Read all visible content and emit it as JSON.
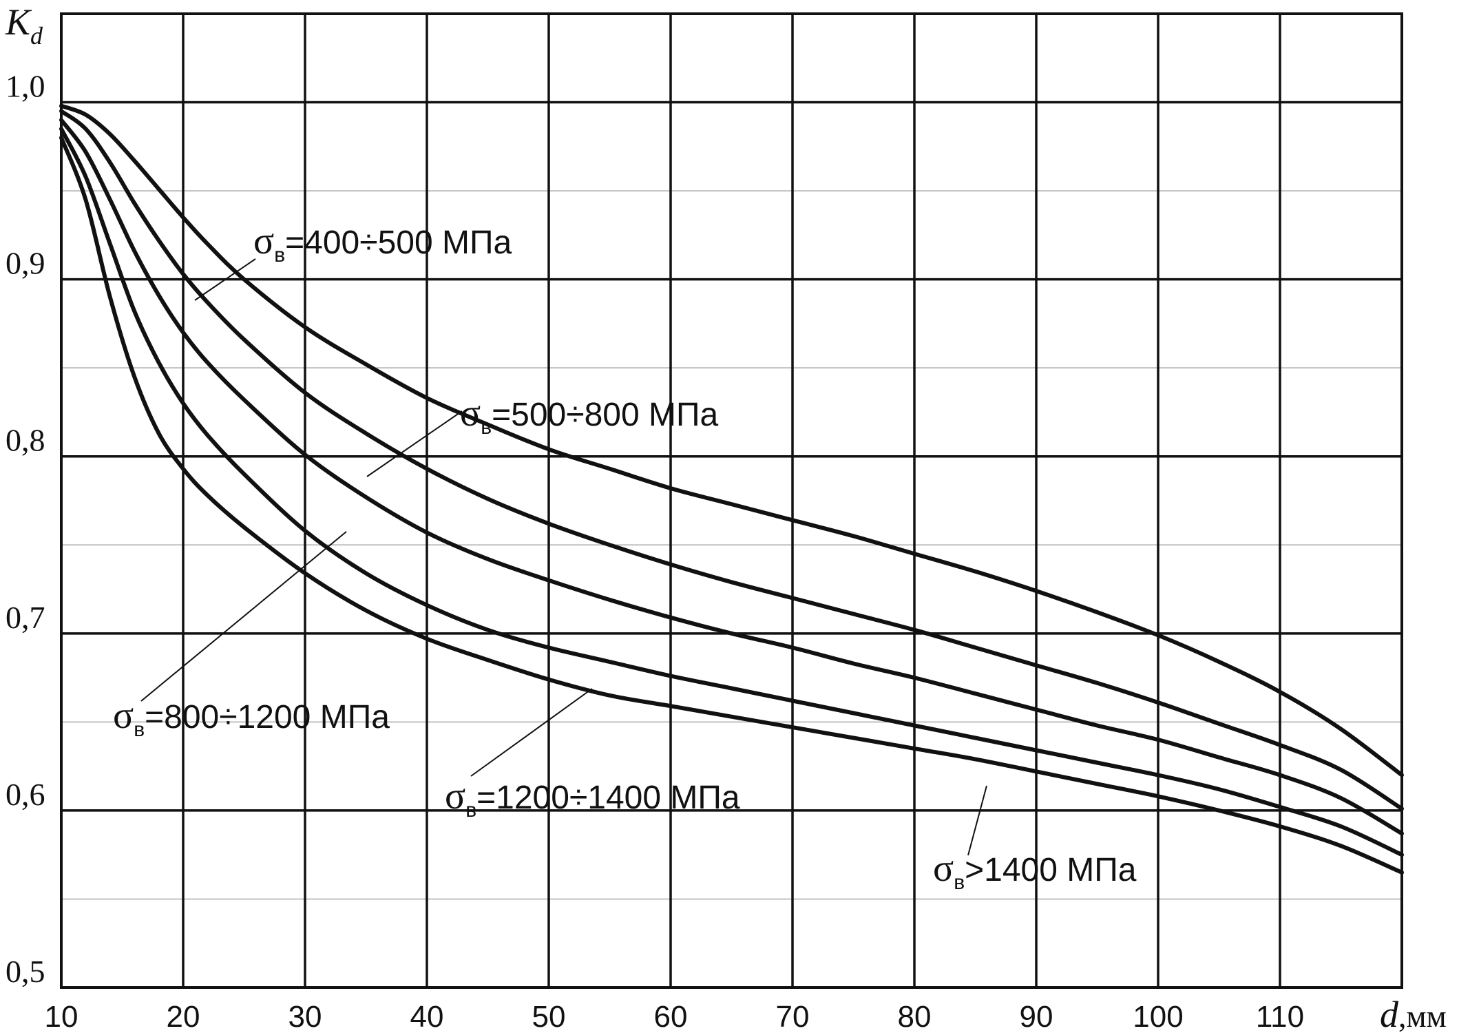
{
  "chart_data": {
    "type": "line",
    "ylabel": {
      "main": "K",
      "sub": "d"
    },
    "xlabel": {
      "main": "d",
      "unit": ",мм"
    },
    "x_ticks": [
      "10",
      "20",
      "30",
      "40",
      "50",
      "60",
      "70",
      "80",
      "90",
      "100",
      "110"
    ],
    "y_ticks": [
      "0,5",
      "0,6",
      "0,7",
      "0,8",
      "0,9",
      "1,0"
    ],
    "xlim": [
      10,
      120
    ],
    "ylim": [
      0.5,
      1.05
    ],
    "grid": true,
    "series": [
      {
        "name": "σв=400÷500 МПа",
        "label": {
          "sigma": "σ",
          "sub": "в",
          "text": "=400÷500 МПа"
        },
        "x": [
          10,
          12,
          14,
          16,
          18,
          20,
          22,
          25,
          30,
          35,
          40,
          45,
          50,
          55,
          60,
          65,
          70,
          75,
          80,
          85,
          90,
          95,
          100,
          105,
          110,
          115,
          120
        ],
        "values": [
          0.998,
          0.993,
          0.982,
          0.967,
          0.951,
          0.935,
          0.92,
          0.9,
          0.873,
          0.852,
          0.833,
          0.818,
          0.804,
          0.793,
          0.782,
          0.773,
          0.764,
          0.755,
          0.745,
          0.735,
          0.724,
          0.712,
          0.699,
          0.684,
          0.667,
          0.646,
          0.62
        ]
      },
      {
        "name": "σв=500÷800 МПа",
        "label": {
          "sigma": "σ",
          "sub": "в",
          "text": "=500÷800 МПа"
        },
        "x": [
          10,
          12,
          14,
          16,
          18,
          20,
          22,
          25,
          30,
          35,
          40,
          45,
          50,
          55,
          60,
          65,
          70,
          75,
          80,
          85,
          90,
          95,
          100,
          105,
          110,
          115,
          120
        ],
        "values": [
          0.995,
          0.985,
          0.966,
          0.943,
          0.922,
          0.903,
          0.887,
          0.866,
          0.836,
          0.813,
          0.793,
          0.776,
          0.762,
          0.75,
          0.739,
          0.729,
          0.72,
          0.711,
          0.702,
          0.692,
          0.682,
          0.672,
          0.661,
          0.649,
          0.637,
          0.623,
          0.601
        ]
      },
      {
        "name": "σв=800÷1200 МПа",
        "label": {
          "sigma": "σ",
          "sub": "в",
          "text": "=800÷1200 МПа"
        },
        "x": [
          10,
          12,
          14,
          16,
          18,
          20,
          22,
          25,
          30,
          35,
          40,
          45,
          50,
          55,
          60,
          65,
          70,
          75,
          80,
          85,
          90,
          95,
          100,
          105,
          110,
          115,
          120
        ],
        "values": [
          0.99,
          0.972,
          0.945,
          0.916,
          0.891,
          0.87,
          0.853,
          0.832,
          0.801,
          0.777,
          0.757,
          0.742,
          0.73,
          0.719,
          0.709,
          0.7,
          0.692,
          0.683,
          0.675,
          0.666,
          0.657,
          0.648,
          0.64,
          0.63,
          0.62,
          0.607,
          0.587
        ]
      },
      {
        "name": "σв=1200÷1400 МПа",
        "label": {
          "sigma": "σ",
          "sub": "в",
          "text": "=1200÷1400 МПа"
        },
        "x": [
          10,
          12,
          14,
          16,
          18,
          20,
          22,
          25,
          30,
          35,
          40,
          45,
          50,
          55,
          60,
          65,
          70,
          75,
          80,
          85,
          90,
          95,
          100,
          105,
          110,
          115,
          120
        ],
        "values": [
          0.985,
          0.958,
          0.92,
          0.882,
          0.853,
          0.83,
          0.812,
          0.79,
          0.758,
          0.734,
          0.716,
          0.702,
          0.692,
          0.684,
          0.676,
          0.669,
          0.662,
          0.655,
          0.648,
          0.641,
          0.634,
          0.627,
          0.62,
          0.612,
          0.602,
          0.591,
          0.575
        ]
      },
      {
        "name": "σв>1400 МПа",
        "label": {
          "sigma": "σ",
          "sub": "в",
          "text": ">1400 МПа"
        },
        "x": [
          10,
          12,
          14,
          16,
          18,
          20,
          22,
          25,
          30,
          35,
          40,
          45,
          50,
          55,
          60,
          65,
          70,
          75,
          80,
          85,
          90,
          95,
          100,
          105,
          110,
          115,
          120
        ],
        "values": [
          0.98,
          0.945,
          0.89,
          0.845,
          0.813,
          0.793,
          0.778,
          0.76,
          0.734,
          0.713,
          0.697,
          0.685,
          0.674,
          0.665,
          0.659,
          0.653,
          0.647,
          0.641,
          0.635,
          0.629,
          0.622,
          0.615,
          0.608,
          0.6,
          0.591,
          0.58,
          0.565
        ]
      }
    ]
  }
}
